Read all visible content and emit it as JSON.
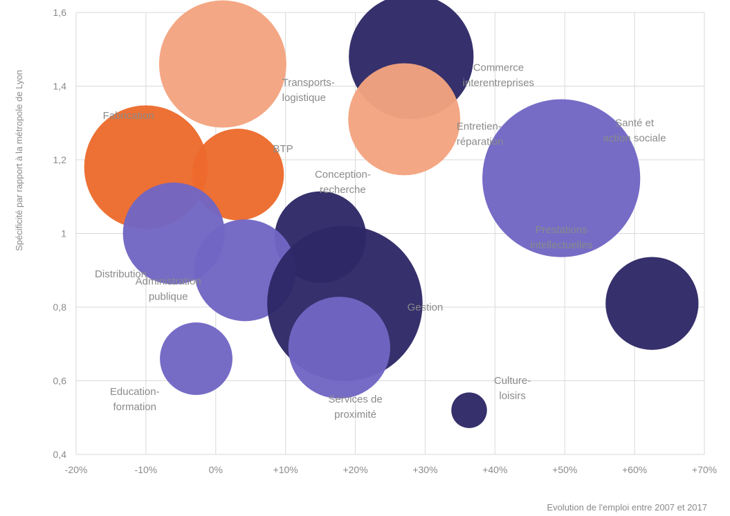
{
  "chart_data": {
    "type": "scatter",
    "xlabel": "Evolution de l'emploi entre 2007 et 2017",
    "ylabel": "Spécificité par rapport à la métropole de Lyon",
    "xlim": [
      -20,
      70
    ],
    "ylim": [
      0.4,
      1.6
    ],
    "grid": true,
    "x_ticks": [
      {
        "value": -20,
        "label": "-20%"
      },
      {
        "value": -10,
        "label": "-10%"
      },
      {
        "value": 0,
        "label": "0%"
      },
      {
        "value": 10,
        "label": "+10%"
      },
      {
        "value": 20,
        "label": "+20%"
      },
      {
        "value": 30,
        "label": "+30%"
      },
      {
        "value": 40,
        "label": "+40%"
      },
      {
        "value": 50,
        "label": "+50%"
      },
      {
        "value": 60,
        "label": "+60%"
      },
      {
        "value": 70,
        "label": "+70%"
      }
    ],
    "y_ticks": [
      {
        "value": 0.4,
        "label": "0,4"
      },
      {
        "value": 0.6,
        "label": "0,6"
      },
      {
        "value": 0.8,
        "label": "0,8"
      },
      {
        "value": 1.0,
        "label": "1"
      },
      {
        "value": 1.2,
        "label": "1,2"
      },
      {
        "value": 1.4,
        "label": "1,4"
      },
      {
        "value": 1.6,
        "label": "1,6"
      }
    ],
    "colors": {
      "dark": "#2e2866",
      "medium": "#7066c4",
      "light_orange": "#f4a37f",
      "orange": "#ec6a2c"
    },
    "points": [
      {
        "name": "Transports-logistique",
        "label_lines": [
          "Transports-",
          "logistique"
        ],
        "x": 1,
        "y": 1.46,
        "size": 1.0,
        "color": "light_orange",
        "label_anchor": "start",
        "label_dx": 8.5,
        "label_dy": -0.07
      },
      {
        "name": "Commerce interentreprises",
        "label_lines": [
          "Commerce",
          "interentreprises"
        ],
        "x": 28,
        "y": 1.48,
        "size": 0.98,
        "color": "dark",
        "label_anchor": "middle",
        "label_dx": 12.5,
        "label_dy": -0.05
      },
      {
        "name": "Entretien-réparation",
        "label_lines": [
          "Entretien-",
          "réparation"
        ],
        "x": 27,
        "y": 1.31,
        "size": 0.88,
        "color": "light_orange",
        "label_anchor": "start",
        "label_dx": 7.5,
        "label_dy": -0.04
      },
      {
        "name": "Santé et action sociale",
        "label_lines": [
          "Santé et",
          "action sociale"
        ],
        "x": 49.5,
        "y": 1.15,
        "size": 1.24,
        "color": "medium",
        "label_anchor": "middle",
        "label_dx": 10.5,
        "label_dy": 0.13
      },
      {
        "name": "Fabrication",
        "label_lines": [
          "Fabrication"
        ],
        "x": -10,
        "y": 1.18,
        "size": 0.97,
        "color": "orange",
        "label_anchor": "middle",
        "label_dx": -2.5,
        "label_dy": 0.14
      },
      {
        "name": "BTP",
        "label_lines": [
          "BTP"
        ],
        "x": 3.2,
        "y": 1.16,
        "size": 0.72,
        "color": "orange",
        "label_anchor": "start",
        "label_dx": 5.0,
        "label_dy": 0.07
      },
      {
        "name": "Conception-recherche",
        "label_lines": [
          "Conception-",
          "recherche"
        ],
        "x": 15,
        "y": 0.99,
        "size": 0.72,
        "color": "dark",
        "label_anchor": "middle",
        "label_dx": 3.2,
        "label_dy": 0.15
      },
      {
        "name": "Distribution",
        "label_lines": [
          "Distribution"
        ],
        "x": -6,
        "y": 1.0,
        "size": 0.8,
        "color": "medium",
        "label_anchor": "middle",
        "label_dx": -7.6,
        "label_dy": -0.11
      },
      {
        "name": "Administration publique",
        "label_lines": [
          "Administration",
          "publique"
        ],
        "x": 4.2,
        "y": 0.9,
        "size": 0.8,
        "color": "medium",
        "label_anchor": "middle",
        "label_dx": -11.0,
        "label_dy": -0.05
      },
      {
        "name": "Gestion",
        "label_lines": [
          "Gestion"
        ],
        "x": 18.5,
        "y": 0.81,
        "size": 1.22,
        "color": "dark",
        "label_anchor": "middle",
        "label_dx": 11.5,
        "label_dy": -0.01
      },
      {
        "name": "Services de proximité",
        "label_lines": [
          "Services de",
          "proximité"
        ],
        "x": 17.7,
        "y": 0.69,
        "size": 0.8,
        "color": "medium",
        "label_anchor": "middle",
        "label_dx": 2.3,
        "label_dy": -0.16
      },
      {
        "name": "Education-formation",
        "label_lines": [
          "Education-",
          "formation"
        ],
        "x": -2.8,
        "y": 0.66,
        "size": 0.57,
        "color": "medium",
        "label_anchor": "middle",
        "label_dx": -8.8,
        "label_dy": -0.11
      },
      {
        "name": "Prestations intellectuelles",
        "label_lines": [
          "Prestations",
          "intellectuelles"
        ],
        "x": 62.5,
        "y": 0.81,
        "size": 0.73,
        "color": "dark",
        "label_anchor": "middle",
        "label_dx": -13.0,
        "label_dy": 0.18
      },
      {
        "name": "Culture-loisirs",
        "label_lines": [
          "Culture-",
          "loisirs"
        ],
        "x": 36.3,
        "y": 0.52,
        "size": 0.28,
        "color": "dark",
        "label_anchor": "middle",
        "label_dx": 6.2,
        "label_dy": 0.06
      }
    ]
  }
}
